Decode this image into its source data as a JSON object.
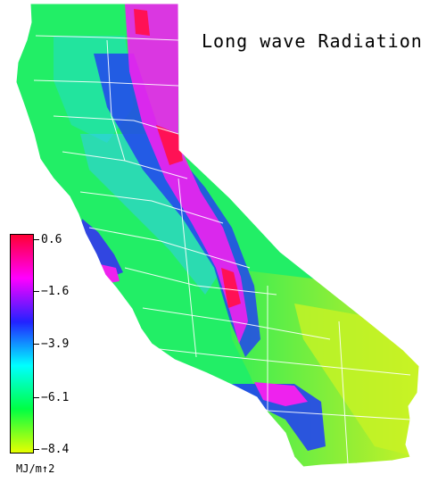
{
  "title": "Long wave Radiation",
  "legend": {
    "ticks": [
      "0.6",
      "−1.6",
      "−3.9",
      "−6.1",
      "−8.4"
    ],
    "values": [
      0.6,
      -1.6,
      -3.9,
      -6.1,
      -8.4
    ],
    "unit": "MJ/m↑2",
    "colors": [
      "#ff0033",
      "#ff00ff",
      "#2222ff",
      "#00ffff",
      "#00ff44",
      "#e6ff00"
    ]
  },
  "colors": {
    "background": "#ffffff",
    "county_lines": "#ffffff",
    "base_fill": "#22ee66"
  }
}
